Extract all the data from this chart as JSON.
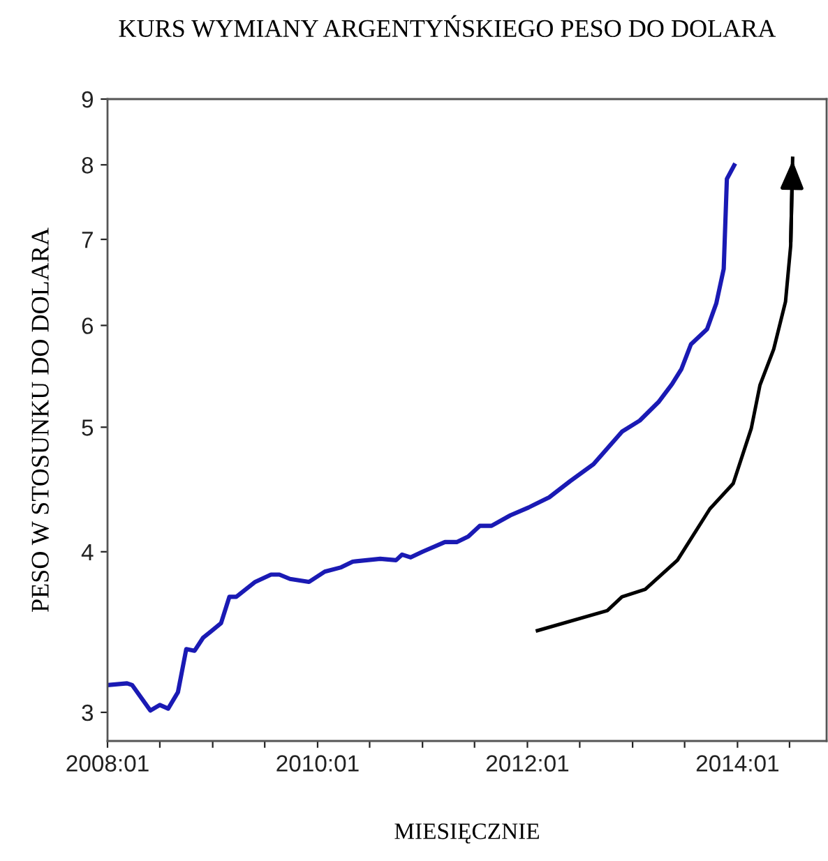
{
  "chart_data": {
    "type": "line",
    "title": "KURS WYMIANY ARGENTYŃSKIEGO PESO DO DOLARA",
    "xlabel": "MIESIĘCZNIE",
    "ylabel": "PESO W STOSUNKU DO DOLARA",
    "log": "y",
    "grid": false,
    "legend": false,
    "marker": "none",
    "line_style": "solid",
    "xlim": [
      "2008-01-01",
      "2014-11-07"
    ],
    "ylim": [
      2.85,
      9
    ],
    "xticks": [
      {
        "value": "2008-01",
        "label": "2008:01"
      },
      {
        "value": "2008-07",
        "label": null
      },
      {
        "value": "2009-01",
        "label": null
      },
      {
        "value": "2009-07",
        "label": null
      },
      {
        "value": "2010-01",
        "label": "2010:01"
      },
      {
        "value": "2010-07",
        "label": null
      },
      {
        "value": "2011-01",
        "label": null
      },
      {
        "value": "2011-07",
        "label": null
      },
      {
        "value": "2012-01",
        "label": "2012:01"
      },
      {
        "value": "2012-07",
        "label": null
      },
      {
        "value": "2013-01",
        "label": null
      },
      {
        "value": "2013-07",
        "label": null
      },
      {
        "value": "2014-01",
        "label": "2014:01"
      },
      {
        "value": "2014-07",
        "label": null
      }
    ],
    "yticks": [
      3,
      4,
      5,
      6,
      7,
      8,
      9
    ],
    "series": [
      {
        "color": "#1a1ab4",
        "x": [
          "2008-01-01",
          "2008-03-09",
          "2008-03-27",
          "2008-05-29",
          "2008-07-01",
          "2008-07-30",
          "2008-09-02",
          "2008-10-01",
          "2008-10-30",
          "2008-11-29",
          "2008-12-27",
          "2009-01-30",
          "2009-02-28",
          "2009-03-24",
          "2009-05-29",
          "2009-07-23",
          "2009-08-21",
          "2009-09-27",
          "2009-12-02",
          "2010-01-26",
          "2010-03-24",
          "2010-05-03",
          "2010-08-07",
          "2010-10-01",
          "2010-10-22",
          "2010-11-21",
          "2011-01-01",
          "2011-03-20",
          "2011-04-30",
          "2011-06-09",
          "2011-07-19",
          "2011-08-29",
          "2011-11-03",
          "2012-01-05",
          "2012-03-17",
          "2012-05-29",
          "2012-08-18",
          "2012-11-25",
          "2013-01-26",
          "2013-04-01",
          "2013-05-18",
          "2013-06-20",
          "2013-07-23",
          "2013-09-17",
          "2013-10-19",
          "2013-11-14",
          "2013-11-25",
          "2013-12-24"
        ],
        "values": [
          3.15,
          3.16,
          3.15,
          3.01,
          3.04,
          3.02,
          3.11,
          3.36,
          3.35,
          3.43,
          3.47,
          3.52,
          3.69,
          3.69,
          3.79,
          3.84,
          3.84,
          3.81,
          3.79,
          3.86,
          3.89,
          3.93,
          3.95,
          3.94,
          3.98,
          3.96,
          4.0,
          4.07,
          4.07,
          4.11,
          4.19,
          4.19,
          4.27,
          4.33,
          4.41,
          4.54,
          4.68,
          4.96,
          5.06,
          5.23,
          5.4,
          5.55,
          5.8,
          5.96,
          6.24,
          6.64,
          7.8,
          8.02
        ]
      },
      {
        "color": "#000000",
        "x": [
          "2012-01-30",
          "2012-10-05",
          "2012-11-25",
          "2013-02-14",
          "2013-06-06",
          "2013-09-27",
          "2013-12-17",
          "2014-02-18",
          "2014-03-20",
          "2014-05-07",
          "2014-06-17",
          "2014-07-05",
          "2014-07-12"
        ],
        "values": [
          3.47,
          3.6,
          3.69,
          3.74,
          3.94,
          4.32,
          4.52,
          4.99,
          5.39,
          5.75,
          6.26,
          6.92,
          8.12
        ]
      }
    ]
  }
}
